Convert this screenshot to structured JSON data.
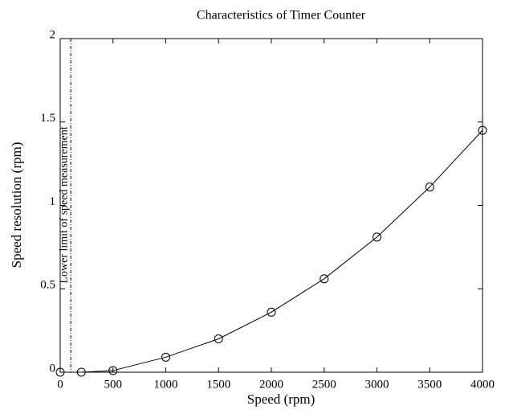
{
  "chart_data": {
    "type": "line",
    "title": "Characteristics of Timer Counter",
    "x_label": "Speed (rpm)",
    "y_label": "Speed resolution (rpm)",
    "x": [
      0,
      200,
      500,
      1000,
      1500,
      2000,
      2500,
      3000,
      3500,
      4000
    ],
    "series": [
      {
        "name": "Speed resolution",
        "color": "#000000",
        "values": [
          0,
          0,
          0.01,
          0.09,
          0.2,
          0.36,
          0.56,
          0.81,
          1.11,
          1.45
        ]
      }
    ],
    "xlim": [
      0,
      4000
    ],
    "xticks": [
      0,
      500,
      1000,
      1500,
      2000,
      2500,
      3000,
      3500,
      4000
    ],
    "ylim": [
      0,
      2
    ],
    "yticks": [
      0,
      0.5,
      1,
      1.5,
      2
    ],
    "annotation": {
      "text": "Lower limit of speed measurement",
      "x": 100
    },
    "grid": false
  }
}
